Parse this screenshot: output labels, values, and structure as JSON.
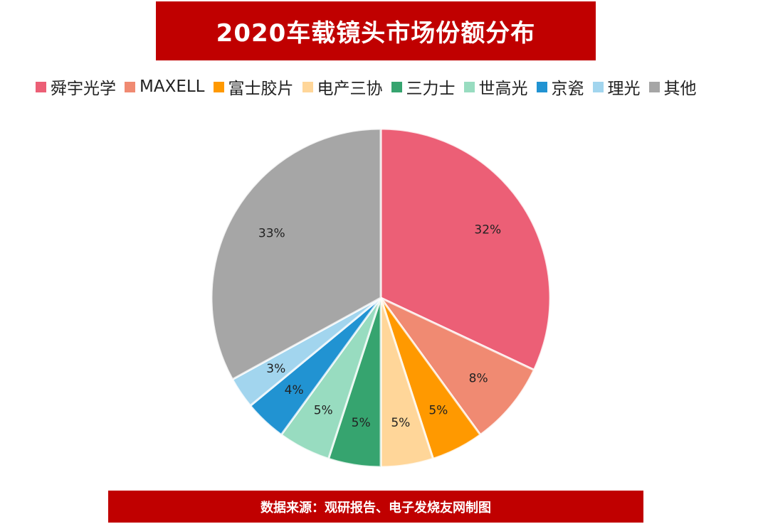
{
  "header": {
    "title": "2020车载镜头市场份额分布"
  },
  "footer": {
    "source": "数据来源：观研报告、电子发烧友网制图"
  },
  "chart_data": {
    "type": "pie",
    "title": "2020车载镜头市场份额分布",
    "legend_position": "top",
    "start": "top",
    "direction": "clockwise",
    "slices": [
      {
        "name": "舜宇光学",
        "value": 32,
        "label": "32%",
        "color": "#ec5f76"
      },
      {
        "name": "MAXELL",
        "value": 8,
        "label": "8%",
        "color": "#f08a72"
      },
      {
        "name": "富士胶片",
        "value": 5,
        "label": "5%",
        "color": "#ff9900"
      },
      {
        "name": "电产三协",
        "value": 5,
        "label": "5%",
        "color": "#ffd699"
      },
      {
        "name": "三力士",
        "value": 5,
        "label": "5%",
        "color": "#36a46f"
      },
      {
        "name": "世高光",
        "value": 5,
        "label": "5%",
        "color": "#98dcc0"
      },
      {
        "name": "京瓷",
        "value": 4,
        "label": "4%",
        "color": "#2193d2"
      },
      {
        "name": "理光",
        "value": 3,
        "label": "3%",
        "color": "#a2d5ee"
      },
      {
        "name": "其他",
        "value": 33,
        "label": "33%",
        "color": "#a6a6a6"
      }
    ]
  }
}
